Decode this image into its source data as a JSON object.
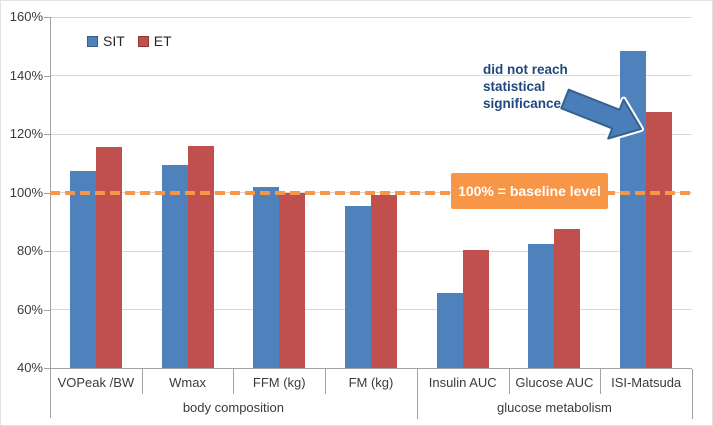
{
  "chart_data": {
    "type": "bar",
    "title": "",
    "xlabel": "",
    "ylabel": "",
    "categories": [
      "VOPeak /BW",
      "Wmax",
      "FFM (kg)",
      "FM (kg)",
      "Insulin AUC",
      "Glucose AUC",
      "ISI-Matsuda"
    ],
    "category_groups": [
      {
        "label": "body composition",
        "start": 0,
        "end": 3
      },
      {
        "label": "glucose metabolism",
        "start": 4,
        "end": 6
      }
    ],
    "series": [
      {
        "name": "SIT",
        "color": "#4F81BD",
        "values": [
          107.5,
          109.5,
          102,
          95.5,
          65.5,
          82.5,
          148.5
        ]
      },
      {
        "name": "ET",
        "color": "#C0504D",
        "values": [
          115.5,
          116,
          100,
          99,
          80.5,
          87.5,
          127.5
        ]
      }
    ],
    "ylim": [
      40,
      160
    ],
    "ytick_step": 20,
    "ytick_labels": [
      "40%",
      "60%",
      "80%",
      "100%",
      "120%",
      "140%",
      "160%"
    ],
    "grid": "horizontal",
    "legend_position": "top-left",
    "baseline": {
      "value": 100,
      "label": "100% = baseline level",
      "color": "#F79646"
    },
    "annotation": {
      "lines": [
        "did not reach",
        "statistical",
        "significance"
      ],
      "color": "#1F497D",
      "arrow_target": "ISI-Matsuda",
      "arrow_fill": "#4A7EBB",
      "arrow_stroke": "#35618F"
    }
  }
}
